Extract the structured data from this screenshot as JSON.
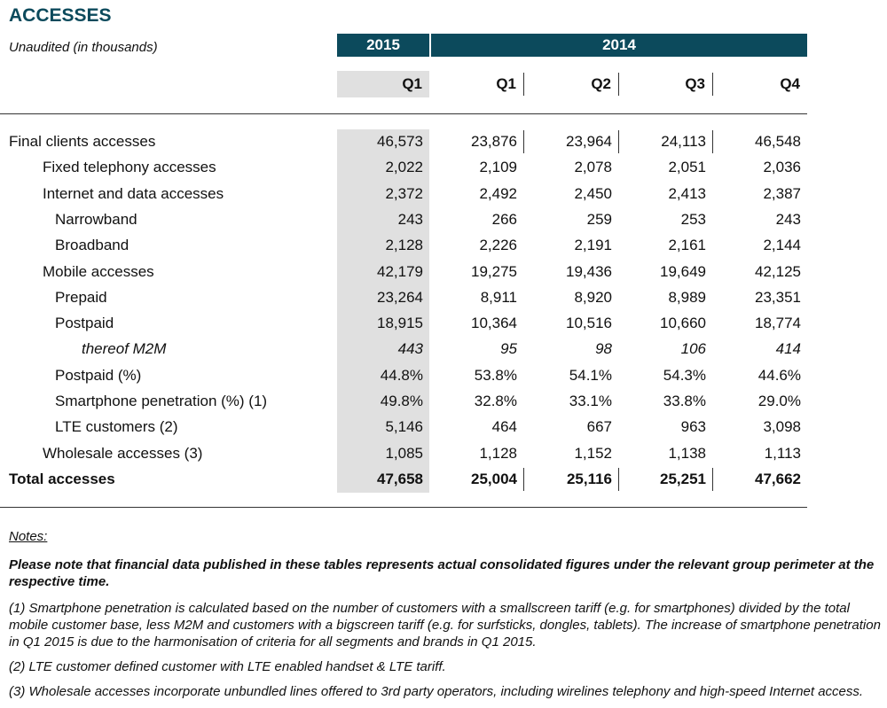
{
  "header": {
    "title": "ACCESSES",
    "subtitle": "Unaudited (in thousands)"
  },
  "table": {
    "years": [
      "2015",
      "2014"
    ],
    "quarters": [
      "Q1",
      "Q1",
      "Q2",
      "Q3",
      "Q4"
    ],
    "rows": [
      [
        "Final clients accesses",
        "46,573",
        "23,876",
        "23,964",
        "24,113",
        "46,548"
      ],
      [
        "Fixed telephony accesses",
        "2,022",
        "2,109",
        "2,078",
        "2,051",
        "2,036"
      ],
      [
        "Internet and data accesses",
        "2,372",
        "2,492",
        "2,450",
        "2,413",
        "2,387"
      ],
      [
        "Narrowband",
        "243",
        "266",
        "259",
        "253",
        "243"
      ],
      [
        "Broadband",
        "2,128",
        "2,226",
        "2,191",
        "2,161",
        "2,144"
      ],
      [
        "Mobile accesses",
        "42,179",
        "19,275",
        "19,436",
        "19,649",
        "42,125"
      ],
      [
        "Prepaid",
        "23,264",
        "8,911",
        "8,920",
        "8,989",
        "23,351"
      ],
      [
        "Postpaid",
        "18,915",
        "10,364",
        "10,516",
        "10,660",
        "18,774"
      ],
      [
        "thereof M2M",
        "443",
        "95",
        "98",
        "106",
        "414"
      ],
      [
        "Postpaid (%)",
        "44.8%",
        "53.8%",
        "54.1%",
        "54.3%",
        "44.6%"
      ],
      [
        "Smartphone penetration (%) (1)",
        "49.8%",
        "32.8%",
        "33.1%",
        "33.8%",
        "29.0%"
      ],
      [
        "LTE customers (2)",
        "5,146",
        "464",
        "667",
        "963",
        "3,098"
      ],
      [
        "Wholesale accesses (3)",
        "1,085",
        "1,128",
        "1,152",
        "1,138",
        "1,113"
      ],
      [
        "Total accesses",
        "47,658",
        "25,004",
        "25,116",
        "25,251",
        "47,662"
      ]
    ]
  },
  "notes": {
    "heading": "Notes:",
    "items": [
      "Please note that financial data published in these tables represents actual consolidated figures under the relevant group perimeter at the respective time.",
      "(1) Smartphone penetration is calculated based on the number of customers with a smallscreen tariff (e.g. for smartphones) divided by the total mobile customer base, less M2M and customers with a bigscreen tariff (e.g. for surfsticks, dongles, tablets). The increase of smartphone penetration in Q1 2015 is due to the harmonisation of criteria for all segments and brands in Q1 2015.",
      "(2) LTE customer defined customer with LTE enabled handset & LTE tariff.",
      "(3) Wholesale accesses incorporate unbundled lines offered to 3rd party operators, including wirelines telephony and high-speed Internet access."
    ]
  }
}
